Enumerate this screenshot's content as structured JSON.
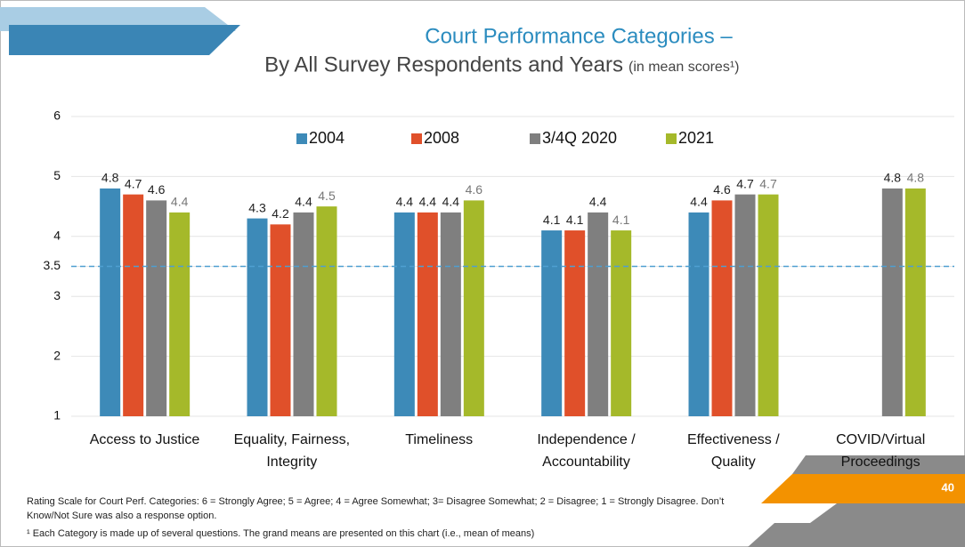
{
  "chart_data": {
    "type": "bar",
    "title": "Court Performance Categories –",
    "subtitle": "By All Survey Respondents and Years",
    "subtitle_note": "(in mean scores¹)",
    "categories": [
      "Access to Justice",
      "Equality, Fairness,\nIntegrity",
      "Timeliness",
      "Independence /\nAccountability",
      "Effectiveness /\nQuality",
      "COVID/Virtual\nProceedings"
    ],
    "series": [
      {
        "name": "2004",
        "color": "#3d8ab8",
        "values": [
          4.8,
          4.3,
          4.4,
          4.1,
          4.4,
          null
        ]
      },
      {
        "name": "2008",
        "color": "#e0502a",
        "values": [
          4.7,
          4.2,
          4.4,
          4.1,
          4.6,
          null
        ]
      },
      {
        "name": "3/4Q 2020",
        "color": "#7f7f7f",
        "values": [
          4.6,
          4.4,
          4.4,
          4.4,
          4.7,
          4.8
        ]
      },
      {
        "name": "2021",
        "color": "#a5b92a",
        "values": [
          4.4,
          4.5,
          4.6,
          4.1,
          4.7,
          4.8
        ]
      }
    ],
    "ylim": [
      1,
      6
    ],
    "yticks": [
      1,
      2,
      3,
      3.5,
      4,
      5,
      6
    ],
    "grid": true,
    "reference_line": {
      "value": 3.5,
      "color": "#4f9fd1"
    },
    "legend": "top"
  },
  "footnotes": [
    "Rating Scale for Court Perf. Categories: 6 = Strongly Agree; 5 = Agree; 4 = Agree Somewhat; 3= Disagree Somewhat; 2 = Disagree; 1 = Strongly Disagree.  Don’t Know/Not Sure was also a response option.",
    "¹ Each Category is made up of several questions. The grand means are presented on this chart (i.e., mean of means)"
  ],
  "page_number": "40"
}
